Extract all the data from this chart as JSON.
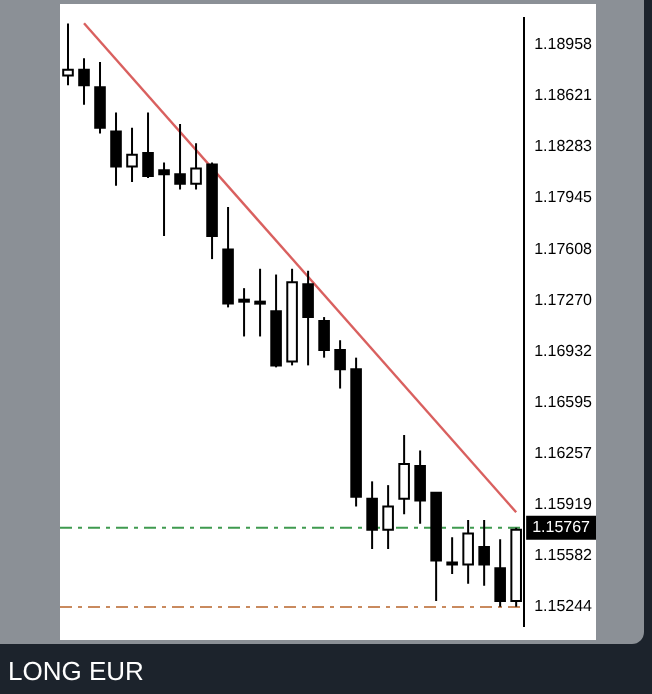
{
  "chart_data": {
    "type": "candlestick",
    "title": "LONG EUR",
    "categories": [
      null,
      null,
      null,
      null,
      null,
      null,
      null,
      null,
      null,
      null,
      null,
      null,
      null,
      null,
      null,
      null,
      null,
      null,
      null,
      null,
      null,
      null,
      null,
      null,
      null,
      null,
      null,
      null,
      null
    ],
    "ohlc": [
      [
        1.18754,
        1.19098,
        1.1869,
        1.18792
      ],
      [
        1.18792,
        1.18869,
        1.18562,
        1.1869
      ],
      [
        1.18677,
        1.18843,
        1.18371,
        1.18409
      ],
      [
        1.18384,
        1.18511,
        1.18027,
        1.18154
      ],
      [
        1.18154,
        1.18409,
        1.18052,
        1.18231
      ],
      [
        1.18243,
        1.18511,
        1.18078,
        1.1809
      ],
      [
        1.18129,
        1.1818,
        1.17695,
        1.18103
      ],
      [
        1.18103,
        1.18435,
        1.18001,
        1.18039
      ],
      [
        1.18039,
        1.18307,
        1.18001,
        1.18141
      ],
      [
        1.18167,
        1.1818,
        1.17542,
        1.17695
      ],
      [
        1.17605,
        1.17886,
        1.17223,
        1.17248
      ],
      [
        1.17274,
        1.1735,
        1.17031,
        1.17261
      ],
      [
        1.17261,
        1.17478,
        1.17031,
        1.17248
      ],
      [
        1.17197,
        1.1744,
        1.16827,
        1.1684
      ],
      [
        1.16865,
        1.17478,
        1.1684,
        1.17389
      ],
      [
        1.17376,
        1.17465,
        1.1684,
        1.17159
      ],
      [
        1.17133,
        1.17159,
        1.16891,
        1.16942
      ],
      [
        1.16942,
        1.17006,
        1.16687,
        1.16814
      ],
      [
        1.16814,
        1.16891,
        1.15908,
        1.15972
      ],
      [
        1.15959,
        1.16074,
        1.15628,
        1.15755
      ],
      [
        1.15755,
        1.16049,
        1.15628,
        1.15908
      ],
      [
        1.15959,
        1.1638,
        1.15857,
        1.16189
      ],
      [
        1.16176,
        1.16278,
        1.15794,
        1.15947
      ],
      [
        1.15998,
        1.15998,
        1.15283,
        1.15551
      ],
      [
        1.15538,
        1.15704,
        1.15462,
        1.15525
      ],
      [
        1.15525,
        1.15819,
        1.15398,
        1.1573
      ],
      [
        1.1564,
        1.15819,
        1.15385,
        1.15525
      ],
      [
        1.155,
        1.15692,
        1.15245,
        1.15283
      ],
      [
        1.15283,
        1.15768,
        1.15245,
        1.15755
      ]
    ],
    "series": [
      {
        "type": "line",
        "values": [
          null,
          1.191,
          null,
          null,
          null,
          null,
          null,
          null,
          null,
          null,
          null,
          null,
          null,
          null,
          null,
          null,
          null,
          null,
          null,
          null,
          null,
          null,
          null,
          null,
          null,
          null,
          null,
          null,
          1.1587
        ],
        "color": "#d9605f"
      }
    ],
    "ylim": [
      1.15116,
      1.19137
    ],
    "yticks": [
      1.18958,
      1.18621,
      1.18283,
      1.17945,
      1.17608,
      {
        "value": 1.1727,
        "label": "1.17270"
      },
      1.16932,
      1.16595,
      1.16257,
      1.15919,
      1.15582,
      1.15244
    ],
    "ref_lines": [
      {
        "axis": "y",
        "value": 1.15767,
        "label": "1.15767",
        "color": "#3f9a4f",
        "line_style": "dashed"
      },
      {
        "axis": "y",
        "value": 1.15244,
        "color": "#c98a5e",
        "line_style": "dashed"
      }
    ],
    "tick_labels": "y",
    "grid": false,
    "legend": false
  }
}
